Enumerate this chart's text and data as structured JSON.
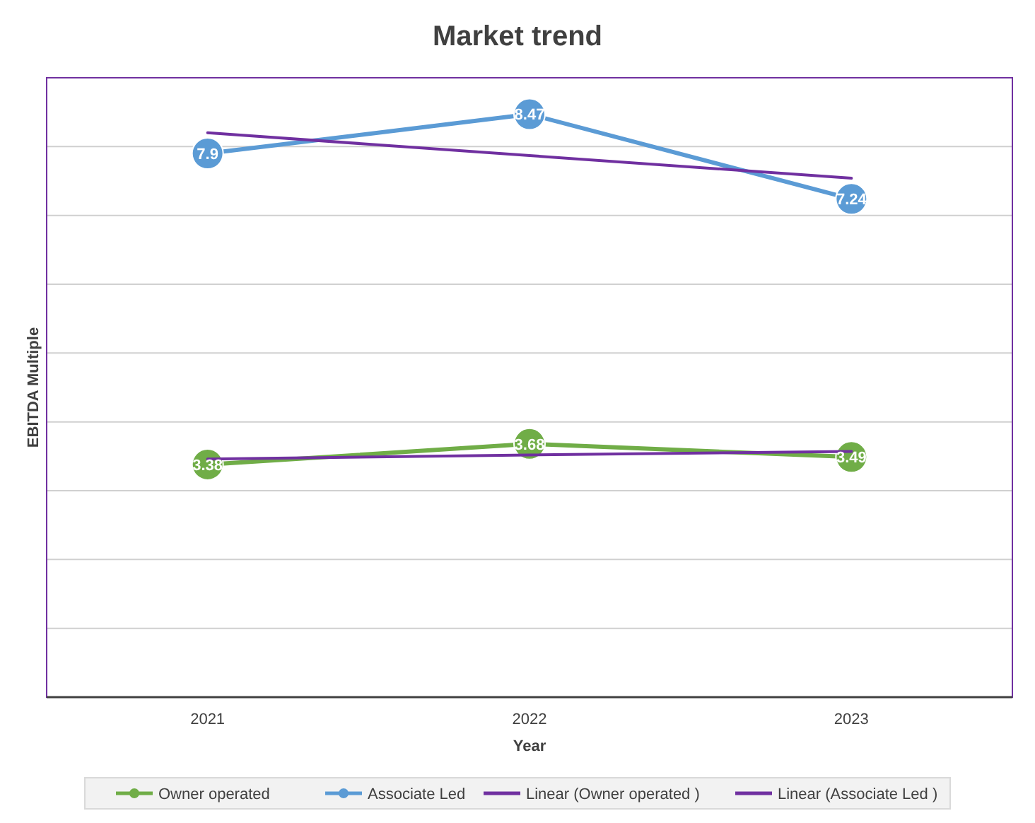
{
  "chart_data": {
    "type": "line",
    "title": "Market trend",
    "xlabel": "Year",
    "ylabel": "EBITDA Multiple",
    "categories": [
      "2021",
      "2022",
      "2023"
    ],
    "ylim": [
      0,
      9
    ],
    "yticks": [
      {
        "value": 0,
        "label": null
      },
      {
        "value": 1,
        "label": null
      },
      {
        "value": 2,
        "label": null
      },
      {
        "value": 3,
        "label": null
      },
      {
        "value": 4,
        "label": null
      },
      {
        "value": 5,
        "label": null
      },
      {
        "value": 6,
        "label": null
      },
      {
        "value": 7,
        "label": null
      },
      {
        "value": 8,
        "label": null
      },
      {
        "value": 9,
        "label": null
      }
    ],
    "tick_labels": "x",
    "grid": "y",
    "legend": "bottom",
    "series": [
      {
        "name": "Owner operated",
        "color": "#70ad47",
        "values": [
          3.38,
          3.68,
          3.49
        ],
        "marker": "circle",
        "value_labels": [
          "3.38",
          "3.68",
          "3.49"
        ]
      },
      {
        "name": "Associate Led",
        "color": "#5b9bd5",
        "values": [
          7.9,
          8.47,
          7.24
        ],
        "marker": "circle",
        "value_labels": [
          "7.9",
          "8.47",
          "7.24"
        ]
      },
      {
        "name": "Linear (Owner operated )",
        "color": "#7030a0",
        "values": [
          3.46,
          3.52,
          3.57
        ],
        "marker": "none"
      },
      {
        "name": "Linear (Associate Led )",
        "color": "#7030a0",
        "values": [
          8.2,
          7.87,
          7.54
        ],
        "marker": "none"
      }
    ]
  }
}
